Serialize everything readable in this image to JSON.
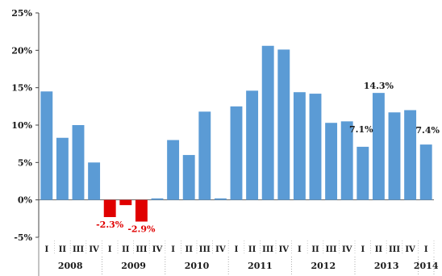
{
  "chart_data": {
    "type": "bar",
    "title": "",
    "xlabel": "",
    "ylabel": "",
    "ylim": [
      -5,
      25
    ],
    "yticks": [
      -5,
      0,
      5,
      10,
      15,
      20,
      25
    ],
    "ytick_labels": [
      "-5%",
      "0%",
      "5%",
      "10%",
      "15%",
      "20%",
      "25%"
    ],
    "grid": false,
    "legend": "none",
    "colors": {
      "positive": "#5b9bd5",
      "negative": "#e00000",
      "positive_label": "#1a1a1a",
      "negative_label": "#e00000"
    },
    "years": [
      {
        "label": "2008",
        "quarters": [
          "I",
          "II",
          "III",
          "IV"
        ]
      },
      {
        "label": "2009",
        "quarters": [
          "I",
          "II",
          "III",
          "IV"
        ]
      },
      {
        "label": "2010",
        "quarters": [
          "I",
          "II",
          "III",
          "IV"
        ]
      },
      {
        "label": "2011",
        "quarters": [
          "I",
          "II",
          "III",
          "IV"
        ]
      },
      {
        "label": "2012",
        "quarters": [
          "I",
          "II",
          "III",
          "IV"
        ]
      },
      {
        "label": "2013",
        "quarters": [
          "I",
          "II",
          "III",
          "IV"
        ]
      },
      {
        "label": "2014",
        "quarters": [
          "I"
        ]
      }
    ],
    "values": [
      14.5,
      8.3,
      10.0,
      5.0,
      -2.3,
      -0.7,
      -2.9,
      0.2,
      8.0,
      6.0,
      11.8,
      0.2,
      12.5,
      14.6,
      20.6,
      20.1,
      14.4,
      14.2,
      10.3,
      10.5,
      7.1,
      14.3,
      11.7,
      12.0,
      7.4
    ],
    "data_labels": [
      {
        "index": 4,
        "text": "-2.3%"
      },
      {
        "index": 6,
        "text": "-2.9%"
      },
      {
        "index": 20,
        "text": "7.1%"
      },
      {
        "index": 21,
        "text": "14.3%"
      },
      {
        "index": 24,
        "text": "7.4%"
      }
    ]
  }
}
